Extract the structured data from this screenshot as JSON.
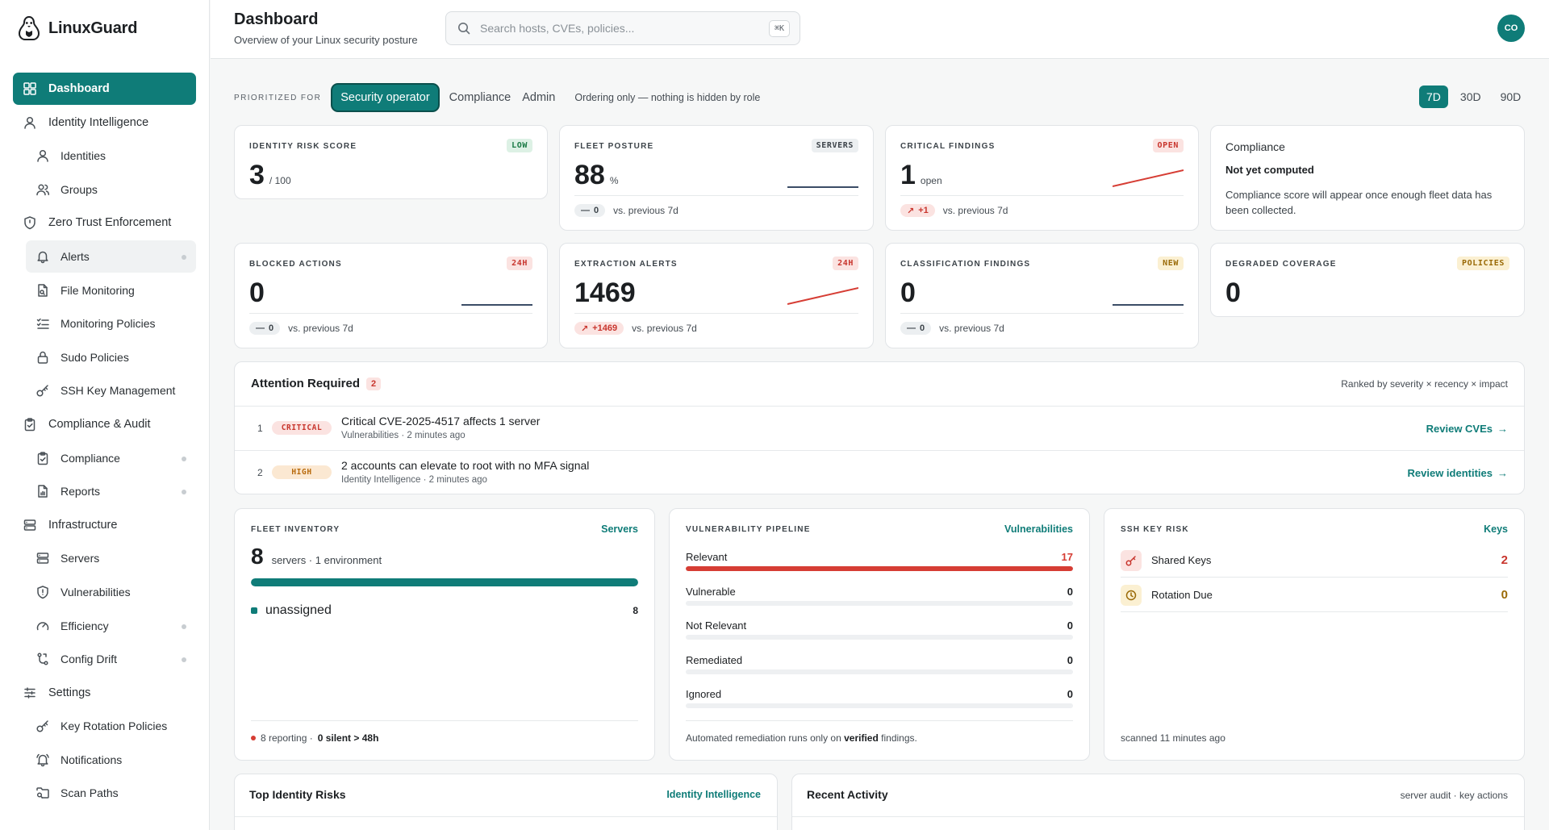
{
  "brand": {
    "name": "LinuxGuard"
  },
  "nav": [
    {
      "label": "Dashboard",
      "icon": "grid-icon",
      "level": "top",
      "active": true
    },
    {
      "label": "Identity Intelligence",
      "icon": "user-icon",
      "level": "top"
    },
    {
      "label": "Identities",
      "icon": "user-icon",
      "level": "sub"
    },
    {
      "label": "Groups",
      "icon": "users-icon",
      "level": "sub"
    },
    {
      "label": "Zero Trust Enforcement",
      "icon": "shield-icon",
      "level": "top"
    },
    {
      "label": "Alerts",
      "icon": "bell-icon",
      "level": "sub",
      "dot": true,
      "highlight": true
    },
    {
      "label": "File Monitoring",
      "icon": "file-icon",
      "level": "sub"
    },
    {
      "label": "Monitoring Policies",
      "icon": "checklist-icon",
      "level": "sub"
    },
    {
      "label": "Sudo Policies",
      "icon": "lock-icon",
      "level": "sub"
    },
    {
      "label": "SSH Key Management",
      "icon": "key-icon",
      "level": "sub"
    },
    {
      "label": "Compliance & Audit",
      "icon": "clipboard-icon",
      "level": "top"
    },
    {
      "label": "Compliance",
      "icon": "clipboard-check-icon",
      "level": "sub",
      "dot": true
    },
    {
      "label": "Reports",
      "icon": "report-icon",
      "level": "sub",
      "dot": true
    },
    {
      "label": "Infrastructure",
      "icon": "server-icon",
      "level": "top"
    },
    {
      "label": "Servers",
      "icon": "server-icon",
      "level": "sub"
    },
    {
      "label": "Vulnerabilities",
      "icon": "shield-alert-icon",
      "level": "sub"
    },
    {
      "label": "Efficiency",
      "icon": "gauge-icon",
      "level": "sub",
      "dot": true
    },
    {
      "label": "Config Drift",
      "icon": "git-branch-icon",
      "level": "sub",
      "dot": true
    },
    {
      "label": "Settings",
      "icon": "sliders-icon",
      "level": "top"
    },
    {
      "label": "Key Rotation Policies",
      "icon": "key-icon",
      "level": "sub"
    },
    {
      "label": "Notifications",
      "icon": "bell-ring-icon",
      "level": "sub"
    },
    {
      "label": "Scan Paths",
      "icon": "folder-search-icon",
      "level": "sub"
    }
  ],
  "header": {
    "title": "Dashboard",
    "subtitle": "Overview of your Linux security posture",
    "search_placeholder": "Search hosts, CVEs, policies...",
    "search_shortcut": "⌘K",
    "avatar_initials": "CO"
  },
  "rolebar": {
    "label": "PRIORITIZED FOR",
    "roles": [
      "Security operator",
      "Compliance",
      "Admin"
    ],
    "active_role": "Security operator",
    "note": "Ordering only — nothing is hidden by role",
    "ranges": [
      "7D",
      "30D",
      "90D"
    ],
    "active_range": "7D"
  },
  "kpis": [
    {
      "label": "IDENTITY RISK SCORE",
      "badge": "LOW",
      "badge_color": "green",
      "value": "3",
      "unit": "/ 100"
    },
    {
      "label": "FLEET POSTURE",
      "badge": "SERVERS",
      "badge_color": "gray",
      "value": "88",
      "unit": "%",
      "trend": "flat",
      "delta": "0",
      "delta_dir": "flat",
      "delta_text": "vs. previous 7d"
    },
    {
      "label": "CRITICAL FINDINGS",
      "badge": "OPEN",
      "badge_color": "red",
      "value": "1",
      "unit": "open",
      "trend": "up",
      "delta": "+1",
      "delta_dir": "up",
      "delta_text": "vs. previous 7d"
    },
    {
      "label": "BLOCKED ACTIONS",
      "badge": "24H",
      "badge_color": "red",
      "value": "0",
      "unit": "",
      "trend": "flat",
      "delta": "0",
      "delta_dir": "flat",
      "delta_text": "vs. previous 7d"
    },
    {
      "label": "EXTRACTION ALERTS",
      "badge": "24H",
      "badge_color": "red",
      "value": "1469",
      "unit": "",
      "trend": "up",
      "delta": "+1469",
      "delta_dir": "up",
      "delta_text": "vs. previous 7d"
    },
    {
      "label": "CLASSIFICATION FINDINGS",
      "badge": "NEW",
      "badge_color": "amber",
      "value": "0",
      "unit": "",
      "trend": "flat",
      "delta": "0",
      "delta_dir": "flat",
      "delta_text": "vs. previous 7d"
    },
    {
      "label": "DEGRADED COVERAGE",
      "badge": "POLICIES",
      "badge_color": "amber",
      "value": "0",
      "unit": ""
    }
  ],
  "compliance_card": {
    "title": "Compliance",
    "status": "Not yet computed",
    "message": "Compliance score will appear once enough fleet data has been collected."
  },
  "attention": {
    "title": "Attention Required",
    "count": "2",
    "ranking_note": "Ranked by severity × recency × impact",
    "items": [
      {
        "num": "1",
        "severity": "CRITICAL",
        "title": "Critical CVE-2025-4517 affects 1 server",
        "meta": "Vulnerabilities · 2 minutes ago",
        "action": "Review CVEs"
      },
      {
        "num": "2",
        "severity": "HIGH",
        "title": "2 accounts can elevate to root with no MFA signal",
        "meta": "Identity Intelligence · 2 minutes ago",
        "action": "Review identities"
      }
    ]
  },
  "fleet_inventory": {
    "label": "FLEET INVENTORY",
    "link": "Servers",
    "value": "8",
    "summary": "servers · 1 environment",
    "fill": 1.0,
    "group_name": "unassigned",
    "group_count": "8",
    "footer_reporting": "8 reporting ·",
    "footer_silent": "0 silent > 48h"
  },
  "vuln_pipeline": {
    "label": "VULNERABILITY PIPELINE",
    "link": "Vulnerabilities",
    "stages": [
      {
        "name": "Relevant",
        "value": "17",
        "fill": 1.0,
        "color": "#d63d34"
      },
      {
        "name": "Vulnerable",
        "value": "0",
        "fill": 0
      },
      {
        "name": "Not Relevant",
        "value": "0",
        "fill": 0
      },
      {
        "name": "Remediated",
        "value": "0",
        "fill": 0
      },
      {
        "name": "Ignored",
        "value": "0",
        "fill": 0
      }
    ],
    "footer_pre": "Automated remediation runs only on",
    "footer_bold": "verified",
    "footer_post": "findings."
  },
  "ssh_risk": {
    "label": "SSH KEY RISK",
    "link": "Keys",
    "rows": [
      {
        "name": "Shared Keys",
        "value": "2",
        "icon": "key-icon",
        "color": "#c8352d"
      },
      {
        "name": "Rotation Due",
        "value": "0",
        "icon": "clock-icon",
        "color": "#9a6a07"
      }
    ],
    "footer": "scanned 11 minutes ago"
  },
  "top_identity": {
    "title": "Top Identity Risks",
    "link": "Identity Intelligence"
  },
  "recent_activity": {
    "title": "Recent Activity",
    "note": "server audit · key actions"
  },
  "colors": {
    "accent": "#0f7c78",
    "danger": "#d63d34",
    "warning": "#9a6a07"
  }
}
